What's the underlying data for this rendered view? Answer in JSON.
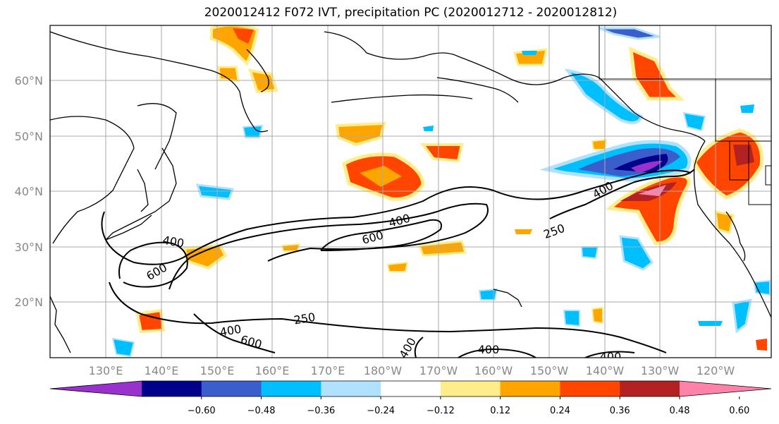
{
  "title": "2020012412 F072 IVT, precipitation PC (2020012712 - 2020012812)",
  "lat_labels": [
    "60°N",
    "50°N",
    "40°N",
    "30°N",
    "20°N"
  ],
  "lon_labels": [
    "130°E",
    "140°E",
    "150°E",
    "160°E",
    "170°E",
    "180°W",
    "170°W",
    "160°W",
    "150°W",
    "140°W",
    "130°W",
    "120°W"
  ],
  "contour_labels": [
    {
      "text": "400"
    },
    {
      "text": "600"
    },
    {
      "text": "600"
    },
    {
      "text": "400"
    },
    {
      "text": "250"
    },
    {
      "text": "400"
    },
    {
      "text": "250"
    },
    {
      "text": "400"
    },
    {
      "text": "600"
    },
    {
      "text": "400"
    },
    {
      "text": "400"
    },
    {
      "text": "400"
    }
  ],
  "colorbar": {
    "ticks": [
      "−0.60",
      "−0.48",
      "−0.36",
      "−0.24",
      "−0.12",
      "0.12",
      "0.24",
      "0.36",
      "0.48",
      "0.60"
    ],
    "colors": [
      "#9932CC",
      "#00008B",
      "#3A5FCD",
      "#00BFFF",
      "#B0E2FF",
      "#FFFFFF",
      "#FFEC8B",
      "#FFA500",
      "#FF4500",
      "#B22222",
      "#FF82AB"
    ]
  }
}
